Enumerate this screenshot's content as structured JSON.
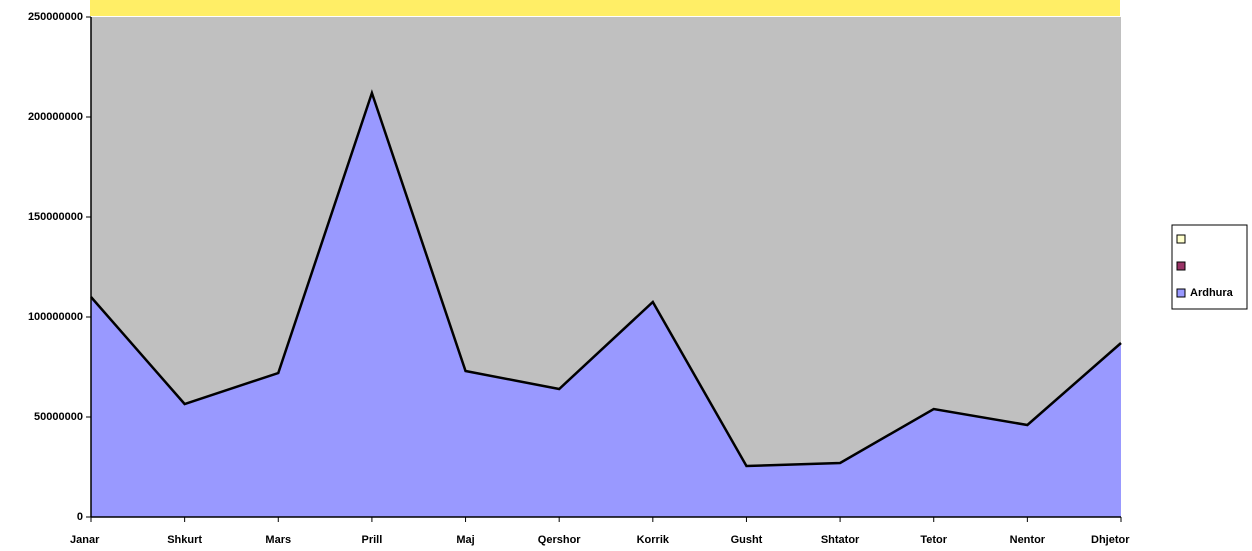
{
  "chart_data": {
    "type": "area",
    "categories": [
      "Janar",
      "Shkurt",
      "Mars",
      "Prill",
      "Maj",
      "Qershor",
      "Korrik",
      "Gusht",
      "Shtator",
      "Tetor",
      "Nentor",
      "Dhjetor"
    ],
    "series": [
      {
        "name": "Ardhura",
        "color": "#9999ff",
        "values": [
          110000000,
          56500000,
          72000000,
          212000000,
          73000000,
          64000000,
          107500000,
          25500000,
          27000000,
          54000000,
          46000000,
          87000000
        ]
      }
    ],
    "ylim": [
      0,
      250000000
    ],
    "yticks": [
      0,
      50000000,
      100000000,
      150000000,
      200000000,
      250000000
    ],
    "plot_background": "#c0c0c0",
    "grid": false
  }
}
